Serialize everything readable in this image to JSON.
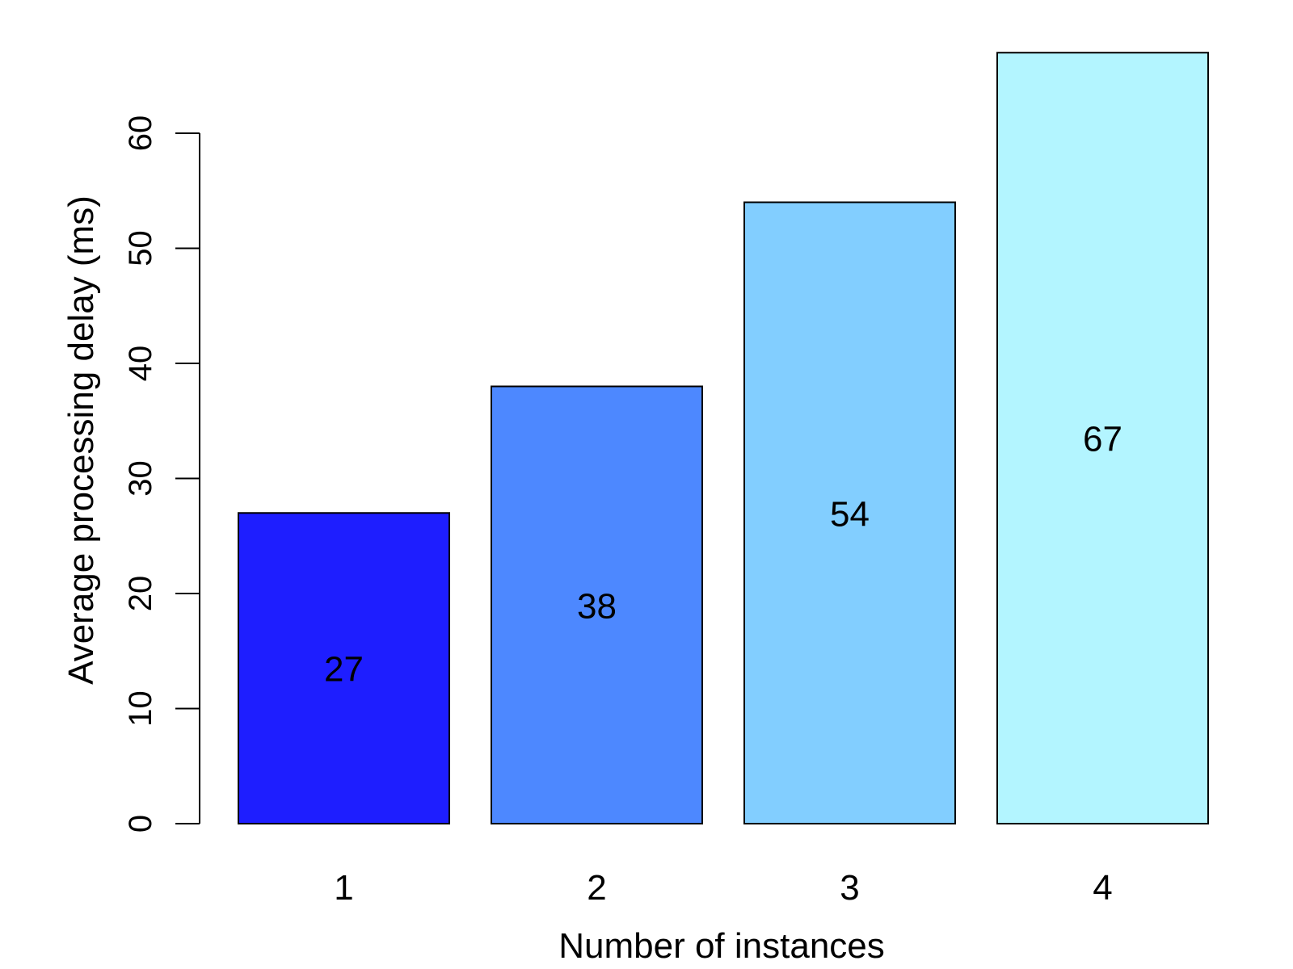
{
  "chart_data": {
    "type": "bar",
    "title": "",
    "xlabel": "Number of instances",
    "ylabel": "Average processing delay (ms)",
    "categories": [
      "1",
      "2",
      "3",
      "4"
    ],
    "values": [
      27,
      38,
      54,
      67
    ],
    "data_labels": [
      "27",
      "38",
      "54",
      "67"
    ],
    "bar_colors": [
      "#1e1eff",
      "#4d88ff",
      "#82ceff",
      "#b3f5ff"
    ],
    "yticks": [
      0,
      10,
      20,
      30,
      40,
      50,
      60
    ],
    "ytick_labels": [
      "0",
      "10",
      "20",
      "30",
      "40",
      "50",
      "60"
    ],
    "ylim": [
      0,
      67
    ],
    "grid": false,
    "legend": "none"
  }
}
